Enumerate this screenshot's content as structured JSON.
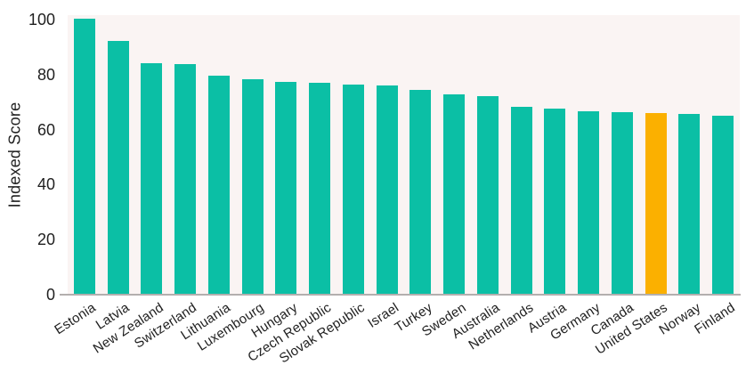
{
  "chart_data": {
    "type": "bar",
    "title": "",
    "xlabel": "",
    "ylabel": "Indexed Score",
    "ylim": [
      0,
      100
    ],
    "yticks": [
      0,
      20,
      40,
      60,
      80,
      100
    ],
    "grid": false,
    "legend_position": "none",
    "categories": [
      "Estonia",
      "Latvia",
      "New Zealand",
      "Switzerland",
      "Lithuania",
      "Luxembourg",
      "Hungary",
      "Czech Republic",
      "Slovak Republic",
      "Israel",
      "Turkey",
      "Sweden",
      "Australia",
      "Netherlands",
      "Austria",
      "Germany",
      "Canada",
      "United States",
      "Norway",
      "Finland"
    ],
    "values": [
      100.3,
      92.2,
      84.3,
      83.7,
      79.5,
      78.2,
      77.2,
      76.9,
      76.3,
      76.0,
      74.5,
      72.8,
      72.2,
      68.2,
      67.7,
      66.7,
      66.4,
      66.1,
      65.7,
      65.0
    ],
    "highlight_category": "United States",
    "colors": {
      "bar": "#0bbfa5",
      "highlight_bar": "#fbb000",
      "plot_background": "#faf4f3",
      "axis_line": "#b3afae",
      "text": "#1f1f1f"
    }
  }
}
